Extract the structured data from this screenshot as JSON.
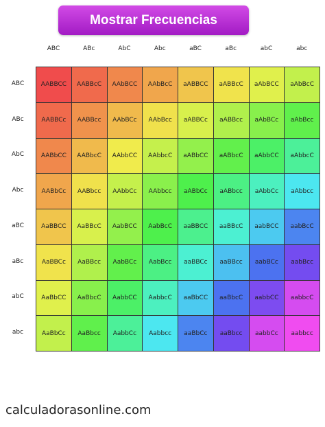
{
  "button": "Mostrar Frecuencias",
  "column_headers": [
    "ABC",
    "ABc",
    "AbC",
    "Abc",
    "aBC",
    "aBc",
    "abC",
    "abc"
  ],
  "row_headers": [
    "ABC",
    "ABc",
    "AbC",
    "Abc",
    "aBC",
    "aBc",
    "abC",
    "abc"
  ],
  "cells": [
    [
      "AABBCC",
      "AABBcC",
      "AAbBCC",
      "AAbBcC",
      "aABBCC",
      "aABBcC",
      "aAbBCC",
      "aAbBcC"
    ],
    [
      "AABBCc",
      "AABBcc",
      "AAbBCc",
      "AAbBcc",
      "aABBCc",
      "aABBcc",
      "aAbBCc",
      "aAbBcc"
    ],
    [
      "AABbCC",
      "AABbcC",
      "AAbbCC",
      "AAbbcC",
      "aABbCC",
      "aABbcC",
      "aAbbCC",
      "aAbbcC"
    ],
    [
      "AABbCc",
      "AABbcc",
      "AAbbCc",
      "AAbbcc",
      "aABbCc",
      "aABbcc",
      "aAbbCc",
      "aAbbcc"
    ],
    [
      "AaBBCC",
      "AaBBcC",
      "AabBCC",
      "AabBcC",
      "aaBBCC",
      "aaBBcC",
      "aabBCC",
      "aabBcC"
    ],
    [
      "AaBBCc",
      "AaBBcc",
      "AabBCc",
      "AabBcc",
      "aaBBCc",
      "aaBBcc",
      "aabBCc",
      "aabBcc"
    ],
    [
      "AaBbCC",
      "AaBbcC",
      "AabbCC",
      "AabbcC",
      "aaBbCC",
      "aaBbcC",
      "aabbCC",
      "aabbcC"
    ],
    [
      "AaBbCc",
      "AaBbcc",
      "AabbCc",
      "Aabbcc",
      "aaBbCc",
      "aaBbcc",
      "aabbCc",
      "aabbcc"
    ]
  ],
  "footer": "calculadorasonline.com"
}
